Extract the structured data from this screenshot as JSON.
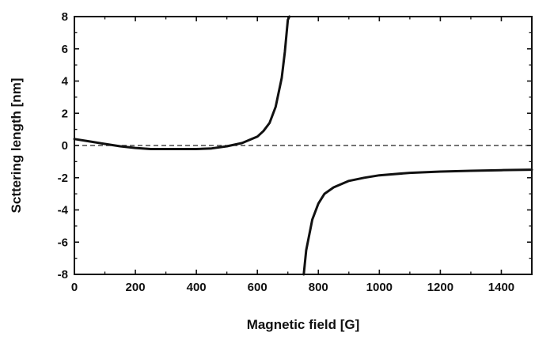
{
  "chart_data": {
    "type": "line",
    "xlabel": "Magnetic field [G]",
    "ylabel": "Scttering length [nm]",
    "xlim": [
      0,
      1500
    ],
    "ylim": [
      -8,
      8
    ],
    "xticks": [
      0,
      200,
      400,
      600,
      800,
      1000,
      1200,
      1400
    ],
    "yticks": [
      -8,
      -6,
      -4,
      -2,
      0,
      2,
      4,
      6,
      8
    ],
    "xtick_labels": [
      "0",
      "200",
      "400",
      "600",
      "800",
      "1000",
      "1200",
      "1400"
    ],
    "ytick_labels": [
      "-8",
      "-6",
      "-4",
      "-2",
      "0",
      "2",
      "4",
      "6",
      "8"
    ],
    "grid": false,
    "legend": "none",
    "zero_line": {
      "y": 0,
      "style": "dashed"
    },
    "series": [
      {
        "segment": "below-resonance",
        "x": [
          0,
          50,
          100,
          150,
          200,
          250,
          300,
          350,
          400,
          450,
          500,
          550,
          600,
          620,
          640,
          660,
          680,
          690,
          700,
          705
        ],
        "y": [
          0.4,
          0.25,
          0.1,
          -0.05,
          -0.15,
          -0.22,
          -0.22,
          -0.22,
          -0.22,
          -0.18,
          -0.05,
          0.15,
          0.55,
          0.9,
          1.4,
          2.4,
          4.2,
          5.8,
          7.8,
          8.0
        ]
      },
      {
        "segment": "above-resonance",
        "x": [
          752,
          760,
          780,
          800,
          820,
          850,
          900,
          950,
          1000,
          1100,
          1200,
          1300,
          1400,
          1500
        ],
        "y": [
          -8.0,
          -6.5,
          -4.6,
          -3.6,
          -3.0,
          -2.6,
          -2.2,
          -2.0,
          -1.85,
          -1.7,
          -1.62,
          -1.57,
          -1.53,
          -1.5
        ]
      }
    ],
    "colors": {
      "line": "#111111",
      "axis": "#111111",
      "zero_line": "#222222"
    }
  }
}
